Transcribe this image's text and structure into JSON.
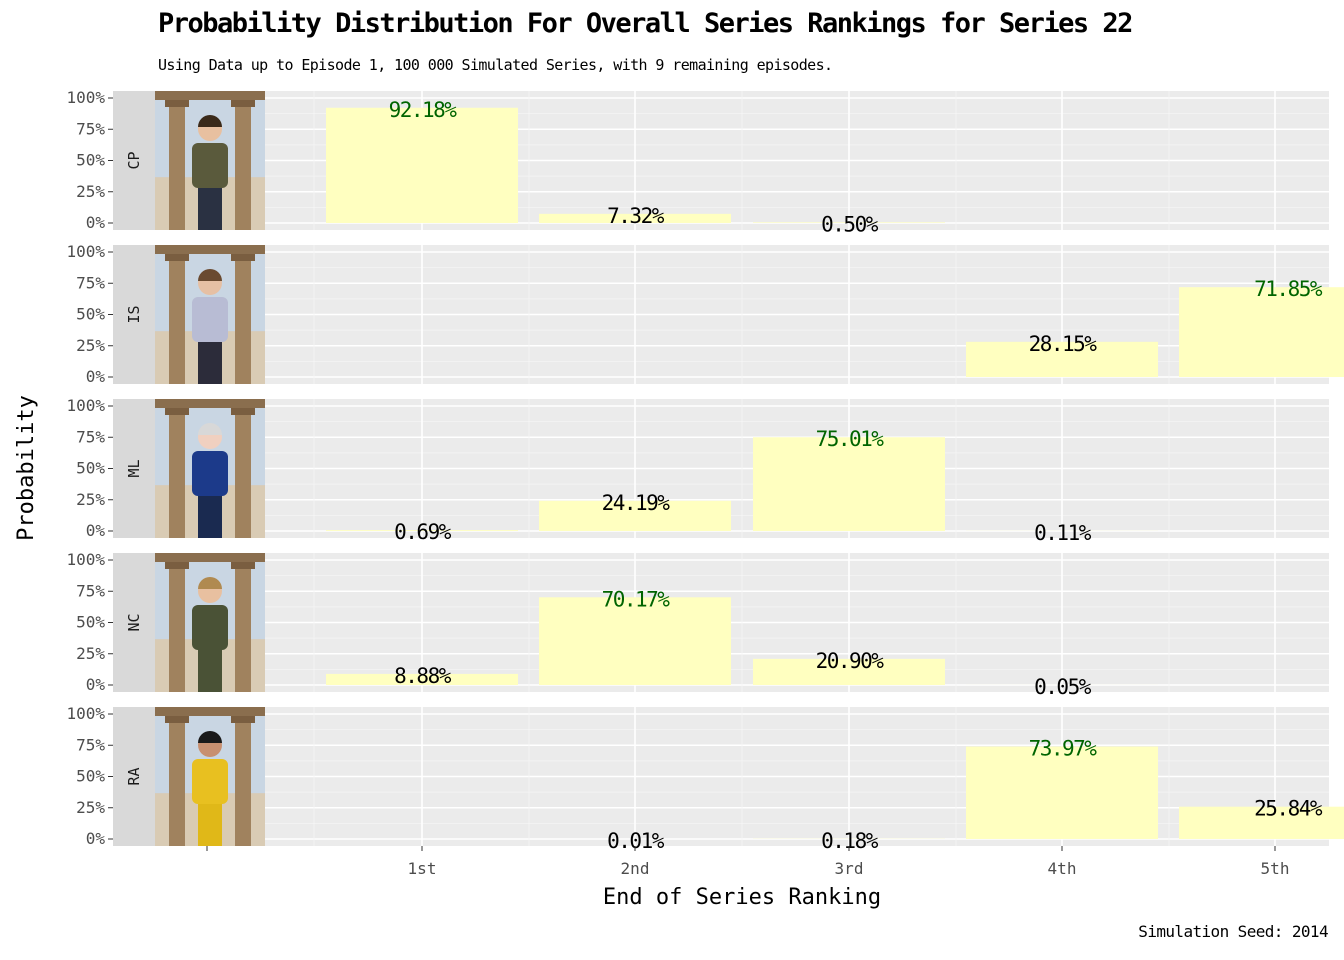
{
  "title": "Probability Distribution For Overall Series Rankings for Series 22",
  "subtitle": "Using Data up to Episode 1, 100 000 Simulated Series, with 9 remaining episodes.",
  "caption": "Simulation Seed: 2014",
  "chart_data": {
    "type": "bar",
    "facet": "rows",
    "title": "Probability Distribution For Overall Series Rankings for Series 22",
    "xlabel": "End of Series Ranking",
    "ylabel": "Probability",
    "categories": [
      "1st",
      "2nd",
      "3rd",
      "4th",
      "5th"
    ],
    "y_ticks": [
      "0%",
      "25%",
      "50%",
      "75%",
      "100%"
    ],
    "ylim": [
      0,
      1
    ],
    "grid": true,
    "bar_color": "#ffffc0",
    "highlight_label_color": "#006400",
    "label_color": "#000000",
    "panel_bg": "#ebebeb",
    "strip_bg": "#d9d9d9",
    "facets": [
      {
        "label": "CP",
        "values": [
          0.9218,
          0.0732,
          0.005,
          null,
          null
        ],
        "labels": [
          "92.18%",
          "7.32%",
          "0.50%",
          "",
          ""
        ],
        "highlight": 0,
        "photo": {
          "shirt": "#5a5a3c",
          "pants": "#2a3142",
          "skin": "#e8c0a0",
          "hair": "#3a2a1a"
        }
      },
      {
        "label": "IS",
        "values": [
          null,
          null,
          null,
          0.2815,
          0.7185
        ],
        "labels": [
          "",
          "",
          "",
          "28.15%",
          "71.85%"
        ],
        "highlight": 4,
        "photo": {
          "shirt": "#b8bcd4",
          "pants": "#2c2c3a",
          "skin": "#e6c0a4",
          "hair": "#6a4a30"
        }
      },
      {
        "label": "ML",
        "values": [
          0.0069,
          0.2419,
          0.7501,
          0.0011,
          null
        ],
        "labels": [
          "0.69%",
          "24.19%",
          "75.01%",
          "0.11%",
          ""
        ],
        "highlight": 2,
        "photo": {
          "shirt": "#1c3a8a",
          "pants": "#1a2a50",
          "skin": "#f0d0c0",
          "hair": "#d8d8d8"
        }
      },
      {
        "label": "NC",
        "values": [
          0.0888,
          0.7017,
          0.209,
          0.0005,
          null
        ],
        "labels": [
          "8.88%",
          "70.17%",
          "20.90%",
          "0.05%",
          ""
        ],
        "highlight": 1,
        "photo": {
          "shirt": "#4a5236",
          "pants": "#4a5236",
          "skin": "#e8c0a0",
          "hair": "#b08a50"
        }
      },
      {
        "label": "RA",
        "values": [
          null,
          0.0001,
          0.0018,
          0.7397,
          0.2584
        ],
        "labels": [
          "",
          "0.01%",
          "0.18%",
          "73.97%",
          "25.84%"
        ],
        "highlight": 3,
        "photo": {
          "shirt": "#e8c020",
          "pants": "#e0b818",
          "skin": "#c89070",
          "hair": "#1a1a1a"
        }
      }
    ]
  }
}
